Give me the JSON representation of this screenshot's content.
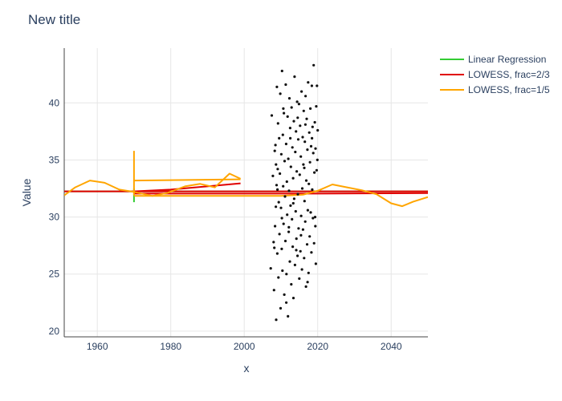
{
  "chart_data": {
    "type": "scatter",
    "title": "New title",
    "xlabel": "x",
    "ylabel": "Value",
    "xlim": [
      1951,
      2050
    ],
    "ylim": [
      19.5,
      44.8
    ],
    "x_ticks": [
      1960,
      1980,
      2000,
      2020,
      2040
    ],
    "y_ticks": [
      20,
      25,
      30,
      35,
      40
    ],
    "grid": true,
    "legend_position": "top-right",
    "series": [
      {
        "name": "Linear Regression",
        "kind": "line",
        "color": "#33cc33",
        "segments": [
          [
            [
              1951,
              32.25
            ],
            [
              2050,
              32.25
            ]
          ],
          [
            [
              1970,
              31.3
            ],
            [
              1970,
              32.5
            ]
          ]
        ]
      },
      {
        "name": "LOWESS, frac=2/3",
        "kind": "line",
        "color": "#e00000",
        "segments": [
          [
            [
              1951,
              32.25
            ],
            [
              2050,
              32.25
            ]
          ],
          [
            [
              1970,
              32.25
            ],
            [
              1980,
              32.4
            ],
            [
              1999,
              32.95
            ]
          ],
          [
            [
              1970,
              32.05
            ],
            [
              2020,
              32.05
            ],
            [
              2050,
              32.1
            ]
          ]
        ]
      },
      {
        "name": "LOWESS, frac=1/5",
        "kind": "line",
        "color": "#ffa500",
        "segments": [
          [
            [
              1951,
              31.9
            ],
            [
              1954,
              32.6
            ],
            [
              1958,
              33.2
            ],
            [
              1962,
              33.0
            ],
            [
              1966,
              32.4
            ],
            [
              1970,
              32.2
            ],
            [
              1975,
              31.85
            ],
            [
              1979,
              32.1
            ],
            [
              1984,
              32.7
            ],
            [
              1988,
              32.9
            ],
            [
              1992,
              32.6
            ],
            [
              1996,
              33.8
            ],
            [
              1999,
              33.35
            ]
          ],
          [
            [
              1970,
              35.8
            ],
            [
              1970,
              31.9
            ]
          ],
          [
            [
              1970,
              33.2
            ],
            [
              1999,
              33.3
            ]
          ],
          [
            [
              1970,
              31.85
            ],
            [
              2010,
              31.85
            ],
            [
              2016,
              31.95
            ],
            [
              2020,
              32.3
            ],
            [
              2024,
              32.85
            ],
            [
              2028,
              32.6
            ],
            [
              2032,
              32.35
            ],
            [
              2036,
              32.0
            ],
            [
              2040,
              31.2
            ],
            [
              2043,
              30.95
            ],
            [
              2046,
              31.35
            ],
            [
              2050,
              31.75
            ]
          ]
        ]
      },
      {
        "name": "",
        "kind": "markers",
        "color": "#111111",
        "points": [
          [
            2007.2,
            25.5
          ],
          [
            2007.5,
            38.9
          ],
          [
            2007.8,
            33.6
          ],
          [
            2008.0,
            27.8
          ],
          [
            2008.1,
            23.6
          ],
          [
            2008.3,
            35.8
          ],
          [
            2008.4,
            29.2
          ],
          [
            2008.5,
            36.3
          ],
          [
            2008.6,
            30.9
          ],
          [
            2008.7,
            21.0
          ],
          [
            2008.8,
            32.8
          ],
          [
            2008.9,
            41.4
          ],
          [
            2009.0,
            26.8
          ],
          [
            2009.1,
            34.2
          ],
          [
            2009.2,
            38.2
          ],
          [
            2009.3,
            24.7
          ],
          [
            2009.4,
            31.3
          ],
          [
            2009.5,
            36.9
          ],
          [
            2009.6,
            28.5
          ],
          [
            2009.7,
            33.8
          ],
          [
            2009.8,
            40.8
          ],
          [
            2009.9,
            22.0
          ],
          [
            2010.0,
            30.8
          ],
          [
            2010.1,
            35.5
          ],
          [
            2010.2,
            27.2
          ],
          [
            2010.3,
            42.8
          ],
          [
            2010.4,
            25.3
          ],
          [
            2010.5,
            37.2
          ],
          [
            2010.6,
            32.7
          ],
          [
            2010.7,
            29.4
          ],
          [
            2010.8,
            39.1
          ],
          [
            2010.9,
            23.2
          ],
          [
            2011.0,
            34.9
          ],
          [
            2011.1,
            31.8
          ],
          [
            2011.2,
            27.9
          ],
          [
            2011.3,
            41.6
          ],
          [
            2011.4,
            36.4
          ],
          [
            2011.5,
            25.0
          ],
          [
            2011.6,
            33.1
          ],
          [
            2011.7,
            30.2
          ],
          [
            2011.8,
            38.8
          ],
          [
            2011.9,
            21.3
          ],
          [
            2012.0,
            35.1
          ],
          [
            2012.1,
            28.7
          ],
          [
            2012.2,
            32.3
          ],
          [
            2012.3,
            40.4
          ],
          [
            2012.4,
            26.1
          ],
          [
            2012.5,
            37.8
          ],
          [
            2012.6,
            31.0
          ],
          [
            2012.7,
            34.4
          ],
          [
            2012.8,
            24.1
          ],
          [
            2012.9,
            39.6
          ],
          [
            2013.0,
            29.8
          ],
          [
            2013.1,
            36.1
          ],
          [
            2013.2,
            27.4
          ],
          [
            2013.3,
            33.4
          ],
          [
            2013.4,
            22.9
          ],
          [
            2013.5,
            38.4
          ],
          [
            2013.6,
            31.6
          ],
          [
            2013.7,
            42.3
          ],
          [
            2013.8,
            25.8
          ],
          [
            2013.9,
            35.7
          ],
          [
            2014.0,
            30.5
          ],
          [
            2014.1,
            37.5
          ],
          [
            2014.2,
            28.1
          ],
          [
            2014.3,
            34.0
          ],
          [
            2014.4,
            40.1
          ],
          [
            2014.5,
            26.6
          ],
          [
            2014.6,
            32.0
          ],
          [
            2014.7,
            36.8
          ],
          [
            2014.8,
            29.0
          ],
          [
            2014.9,
            39.9
          ],
          [
            2015.0,
            24.6
          ],
          [
            2015.1,
            33.7
          ],
          [
            2015.2,
            38.0
          ],
          [
            2015.3,
            27.0
          ],
          [
            2015.4,
            35.3
          ],
          [
            2015.5,
            30.1
          ],
          [
            2015.6,
            41.0
          ],
          [
            2015.7,
            25.4
          ],
          [
            2015.8,
            32.5
          ],
          [
            2015.9,
            37.0
          ],
          [
            2016.0,
            28.9
          ],
          [
            2016.1,
            34.6
          ],
          [
            2016.2,
            39.3
          ],
          [
            2016.3,
            26.4
          ],
          [
            2016.4,
            31.4
          ],
          [
            2016.5,
            36.6
          ],
          [
            2016.6,
            29.6
          ],
          [
            2016.7,
            40.6
          ],
          [
            2016.8,
            23.9
          ],
          [
            2016.9,
            33.2
          ],
          [
            2017.0,
            38.6
          ],
          [
            2017.1,
            27.6
          ],
          [
            2017.2,
            35.9
          ],
          [
            2017.3,
            30.6
          ],
          [
            2017.4,
            41.8
          ],
          [
            2017.5,
            25.1
          ],
          [
            2017.6,
            32.9
          ],
          [
            2017.7,
            37.4
          ],
          [
            2017.8,
            28.3
          ],
          [
            2017.9,
            34.8
          ],
          [
            2018.0,
            39.5
          ],
          [
            2018.1,
            30.4
          ],
          [
            2018.2,
            36.2
          ],
          [
            2018.3,
            26.9
          ],
          [
            2018.4,
            41.5
          ],
          [
            2018.5,
            32.4
          ],
          [
            2018.6,
            37.9
          ],
          [
            2018.7,
            29.9
          ],
          [
            2018.8,
            35.6
          ],
          [
            2018.9,
            43.3
          ],
          [
            2019.0,
            27.7
          ],
          [
            2019.1,
            33.9
          ],
          [
            2019.2,
            38.3
          ],
          [
            2019.3,
            30.0
          ],
          [
            2019.4,
            36.0
          ],
          [
            2019.5,
            25.9
          ],
          [
            2019.6,
            39.7
          ],
          [
            2019.7,
            34.1
          ],
          [
            2019.8,
            41.5
          ],
          [
            2019.9,
            35.0
          ],
          [
            2020.0,
            37.6
          ],
          [
            2008.2,
            27.3
          ],
          [
            2009.05,
            32.4
          ],
          [
            2010.25,
            29.9
          ],
          [
            2011.45,
            22.5
          ],
          [
            2012.55,
            36.9
          ],
          [
            2013.35,
            31.2
          ],
          [
            2014.55,
            38.7
          ],
          [
            2015.45,
            28.4
          ],
          [
            2016.35,
            34.3
          ],
          [
            2017.25,
            24.3
          ],
          [
            2018.45,
            36.9
          ],
          [
            2019.35,
            29.2
          ],
          [
            2008.65,
            34.6
          ],
          [
            2010.65,
            39.5
          ],
          [
            2012.15,
            29.1
          ],
          [
            2014.15,
            27.1
          ],
          [
            2016.65,
            38.1
          ]
        ]
      }
    ]
  }
}
